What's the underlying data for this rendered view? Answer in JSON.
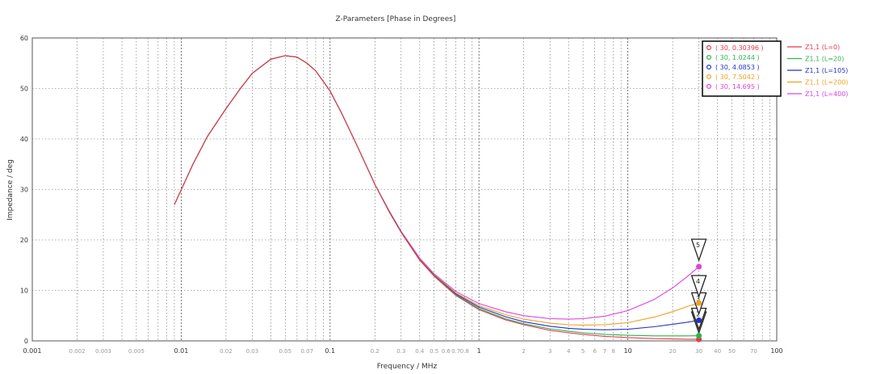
{
  "chart_data": {
    "type": "line",
    "title": "Z-Parameters [Phase in Degrees]",
    "xlabel": "Frequency / MHz",
    "ylabel": "Impedance / deg",
    "x_scale": "log",
    "xlim": [
      0.001,
      100
    ],
    "ylim": [
      0,
      60
    ],
    "grid": true,
    "legend_position": "right",
    "y_ticks": [
      "0",
      "10",
      "20",
      "30",
      "40",
      "50",
      "60"
    ],
    "x_ticks_major": [
      {
        "value": 0.001,
        "label": "0.001"
      },
      {
        "value": 0.01,
        "label": "0.01"
      },
      {
        "value": 0.1,
        "label": "0.1"
      },
      {
        "value": 1,
        "label": "1"
      },
      {
        "value": 10,
        "label": "10"
      },
      {
        "value": 100,
        "label": "100"
      }
    ],
    "x_ticks_minor": [
      {
        "value": 0.002,
        "label": "0.002"
      },
      {
        "value": 0.003,
        "label": "0.003"
      },
      {
        "value": 0.005,
        "label": "0.005"
      },
      {
        "value": 0.02,
        "label": "0.02"
      },
      {
        "value": 0.03,
        "label": "0.03"
      },
      {
        "value": 0.05,
        "label": "0.05"
      },
      {
        "value": 0.07,
        "label": "0.07"
      },
      {
        "value": 0.2,
        "label": "0.2"
      },
      {
        "value": 0.3,
        "label": "0.3"
      },
      {
        "value": 0.4,
        "label": "0.4"
      },
      {
        "value": 0.5,
        "label": "0.5"
      },
      {
        "value": 0.6,
        "label": "0.6"
      },
      {
        "value": 0.7,
        "label": "0.7"
      },
      {
        "value": 0.8,
        "label": "0.8"
      },
      {
        "value": 2,
        "label": "2"
      },
      {
        "value": 3,
        "label": "3"
      },
      {
        "value": 4,
        "label": "4"
      },
      {
        "value": 5,
        "label": "5"
      },
      {
        "value": 6,
        "label": "6"
      },
      {
        "value": 7,
        "label": "7"
      },
      {
        "value": 8,
        "label": "8"
      },
      {
        "value": 20,
        "label": "20"
      },
      {
        "value": 30,
        "label": "30"
      },
      {
        "value": 40,
        "label": "40"
      },
      {
        "value": 50,
        "label": "50"
      },
      {
        "value": 70,
        "label": "70"
      }
    ],
    "x_gridlines": [
      0.002,
      0.003,
      0.004,
      0.005,
      0.006,
      0.007,
      0.008,
      0.009,
      0.02,
      0.03,
      0.04,
      0.05,
      0.06,
      0.07,
      0.08,
      0.09,
      0.2,
      0.3,
      0.4,
      0.5,
      0.6,
      0.7,
      0.8,
      0.9,
      2,
      3,
      4,
      5,
      6,
      7,
      8,
      9,
      20,
      30,
      40,
      50,
      60,
      70,
      80,
      90
    ],
    "series": [
      {
        "name": "Z1,1 (L=0)",
        "color": "#e8394a",
        "x": [
          0.009,
          0.012,
          0.015,
          0.02,
          0.025,
          0.03,
          0.04,
          0.05,
          0.06,
          0.07,
          0.08,
          0.1,
          0.12,
          0.15,
          0.2,
          0.25,
          0.3,
          0.4,
          0.5,
          0.7,
          1,
          1.5,
          2,
          3,
          4,
          5,
          7,
          10,
          15,
          20,
          25,
          30
        ],
        "y": [
          27,
          35,
          40.5,
          46,
          50,
          53,
          55.8,
          56.5,
          56.2,
          55,
          53.5,
          49.5,
          45,
          39,
          31,
          25.5,
          21.5,
          16,
          12.8,
          9,
          6.2,
          4.2,
          3.2,
          2.1,
          1.6,
          1.3,
          0.9,
          0.65,
          0.45,
          0.38,
          0.33,
          0.3
        ]
      },
      {
        "name": "Z1,1 (L=20)",
        "color": "#2db34a",
        "x": [
          0.009,
          0.012,
          0.015,
          0.02,
          0.025,
          0.03,
          0.04,
          0.05,
          0.06,
          0.07,
          0.08,
          0.1,
          0.12,
          0.15,
          0.2,
          0.25,
          0.3,
          0.4,
          0.5,
          0.7,
          1,
          1.5,
          2,
          3,
          4,
          5,
          7,
          10,
          15,
          20,
          25,
          30
        ],
        "y": [
          27,
          35,
          40.5,
          46,
          50,
          53,
          55.8,
          56.5,
          56.2,
          55,
          53.5,
          49.5,
          45,
          39,
          31,
          25.5,
          21.5,
          16,
          12.9,
          9.1,
          6.4,
          4.4,
          3.4,
          2.4,
          1.9,
          1.6,
          1.3,
          1.1,
          1.0,
          1.0,
          1.0,
          1.02
        ]
      },
      {
        "name": "Z1,1 (L=105)",
        "color": "#2233c8",
        "x": [
          0.009,
          0.012,
          0.015,
          0.02,
          0.025,
          0.03,
          0.04,
          0.05,
          0.06,
          0.07,
          0.08,
          0.1,
          0.12,
          0.15,
          0.2,
          0.25,
          0.3,
          0.4,
          0.5,
          0.7,
          1,
          1.5,
          2,
          3,
          4,
          5,
          7,
          10,
          15,
          20,
          25,
          30
        ],
        "y": [
          27,
          35,
          40.5,
          46,
          50,
          53,
          55.8,
          56.5,
          56.2,
          55,
          53.5,
          49.5,
          45,
          39,
          31,
          25.6,
          21.6,
          16.1,
          13,
          9.3,
          6.7,
          4.8,
          3.8,
          2.9,
          2.5,
          2.3,
          2.2,
          2.3,
          2.8,
          3.3,
          3.7,
          4.08
        ]
      },
      {
        "name": "Z1,1 (L=200)",
        "color": "#f0a020",
        "x": [
          0.009,
          0.012,
          0.015,
          0.02,
          0.025,
          0.03,
          0.04,
          0.05,
          0.06,
          0.07,
          0.08,
          0.1,
          0.12,
          0.15,
          0.2,
          0.25,
          0.3,
          0.4,
          0.5,
          0.7,
          1,
          1.5,
          2,
          3,
          4,
          5,
          7,
          10,
          15,
          20,
          25,
          30
        ],
        "y": [
          27,
          35,
          40.5,
          46,
          50,
          53,
          55.8,
          56.5,
          56.2,
          55,
          53.5,
          49.5,
          45,
          39,
          31,
          25.6,
          21.6,
          16.2,
          13.1,
          9.5,
          7,
          5.2,
          4.3,
          3.5,
          3.2,
          3.1,
          3.2,
          3.6,
          4.7,
          5.8,
          6.8,
          7.5
        ]
      },
      {
        "name": "Z1,1 (L=400)",
        "color": "#e040e0",
        "x": [
          0.009,
          0.012,
          0.015,
          0.02,
          0.025,
          0.03,
          0.04,
          0.05,
          0.06,
          0.07,
          0.08,
          0.1,
          0.12,
          0.15,
          0.2,
          0.25,
          0.3,
          0.4,
          0.5,
          0.7,
          1,
          1.5,
          2,
          3,
          4,
          5,
          7,
          10,
          15,
          20,
          25,
          30
        ],
        "y": [
          27,
          35,
          40.5,
          46,
          50,
          53,
          55.8,
          56.5,
          56.2,
          55,
          53.5,
          49.5,
          45,
          39,
          31,
          25.7,
          21.7,
          16.4,
          13.3,
          9.8,
          7.4,
          5.8,
          5,
          4.4,
          4.3,
          4.4,
          4.9,
          6,
          8.2,
          10.5,
          12.7,
          14.695
        ]
      }
    ],
    "markers": [
      {
        "id": "1",
        "label": "( 30, 0.30396 )",
        "x": 30,
        "y": 0.30396,
        "color": "#e8394a"
      },
      {
        "id": "2",
        "label": "( 30, 1.0244 )",
        "x": 30,
        "y": 1.0244,
        "color": "#2db34a"
      },
      {
        "id": "3",
        "label": "( 30, 4.0853 )",
        "x": 30,
        "y": 4.0853,
        "color": "#2233c8"
      },
      {
        "id": "4",
        "label": "( 30, 7.5042 )",
        "x": 30,
        "y": 7.5042,
        "color": "#f0a020"
      },
      {
        "id": "5",
        "label": "( 30, 14.695 )",
        "x": 30,
        "y": 14.695,
        "color": "#e040e0"
      }
    ]
  }
}
